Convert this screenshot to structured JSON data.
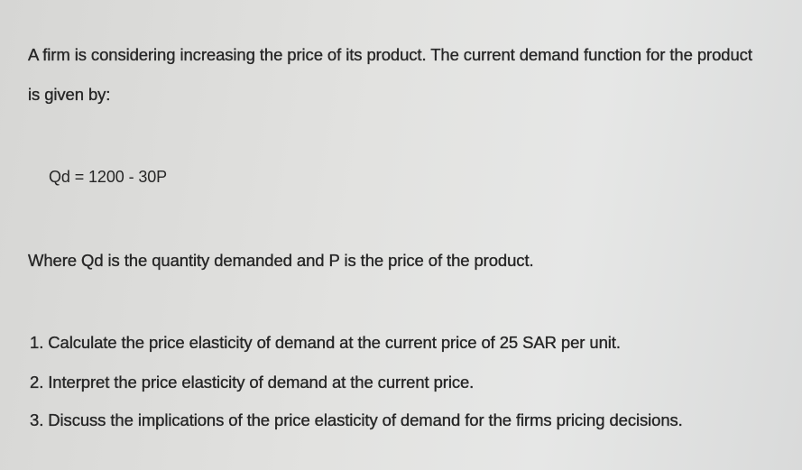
{
  "intro_line1": "A firm is considering increasing the price of its product. The current demand function for the product",
  "intro_line2": "is given by:",
  "equation": "Qd = 1200 - 30P",
  "definition": "Where Qd is the quantity demanded and P is the price of the product.",
  "questions": [
    "1. Calculate the price elasticity of demand at the current price of 25 SAR per unit.",
    "2. Interpret the price elasticity of demand at the current price.",
    "3. Discuss the implications of the price elasticity of demand for the firms pricing decisions."
  ]
}
